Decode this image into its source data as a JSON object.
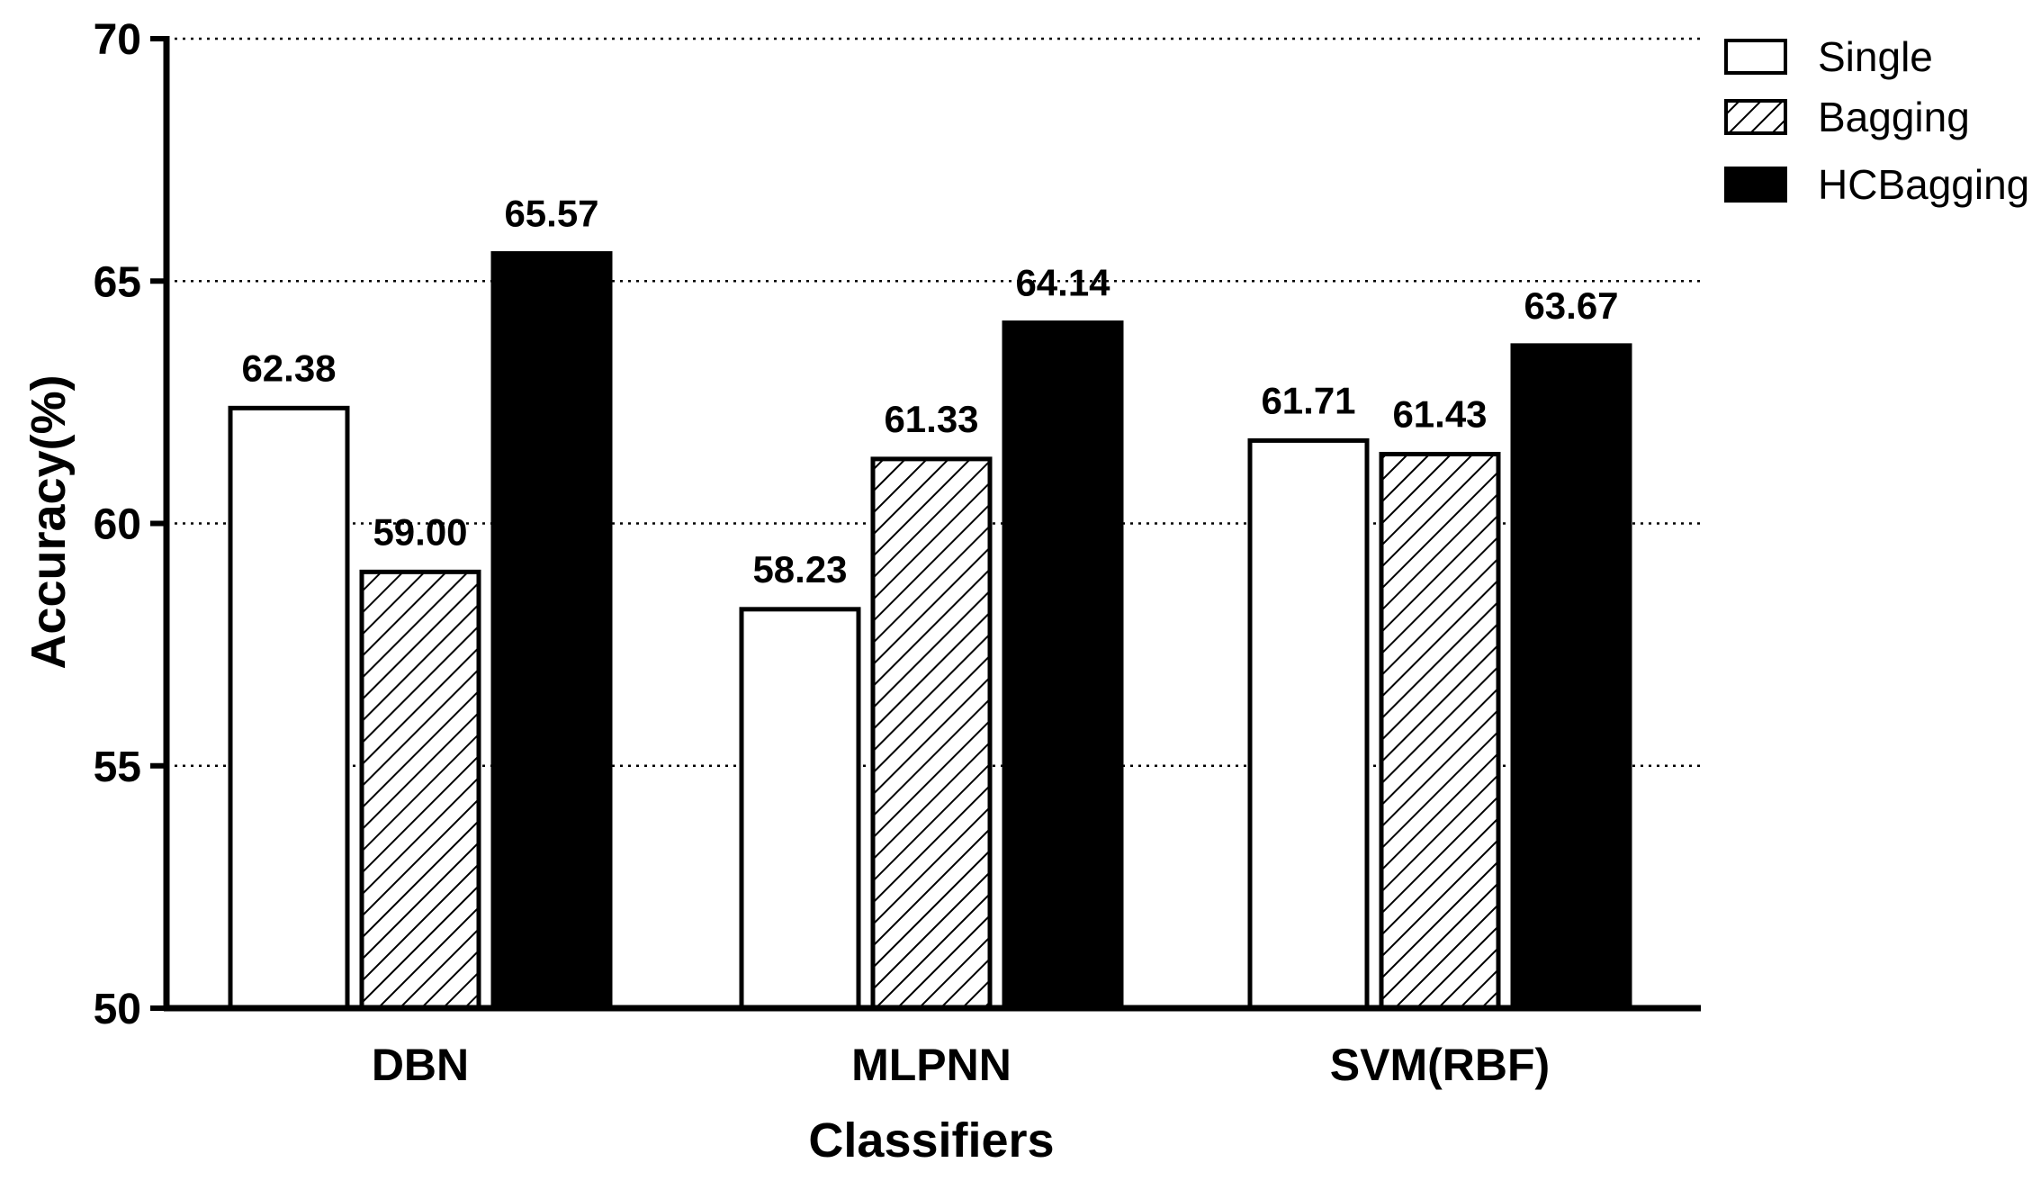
{
  "chart_data": {
    "type": "bar",
    "title": "",
    "xlabel": "Classifiers",
    "ylabel": "Accuracy(%)",
    "categories": [
      "DBN",
      "MLPNN",
      "SVM(RBF)"
    ],
    "series": [
      {
        "name": "Single",
        "values": [
          62.38,
          58.23,
          61.71
        ],
        "value_labels": [
          "62.38",
          "58.23",
          "61.71"
        ],
        "fill": "#ffffff",
        "pattern": "none"
      },
      {
        "name": "Bagging",
        "values": [
          59.0,
          61.33,
          61.43
        ],
        "value_labels": [
          "59.00",
          "61.33",
          "61.43"
        ],
        "fill": "#ffffff",
        "pattern": "diagonal-hatch"
      },
      {
        "name": "HCBagging",
        "values": [
          65.57,
          64.14,
          63.67
        ],
        "value_labels": [
          "65.57",
          "64.14",
          "63.67"
        ],
        "fill": "#000000",
        "pattern": "none"
      }
    ],
    "ylim": [
      50,
      70
    ],
    "yticks": [
      50,
      55,
      60,
      65,
      70
    ],
    "ytick_labels": [
      "50",
      "55",
      "60",
      "65",
      "70"
    ],
    "grid": "horizontal-dotted",
    "legend_position": "top-right"
  }
}
